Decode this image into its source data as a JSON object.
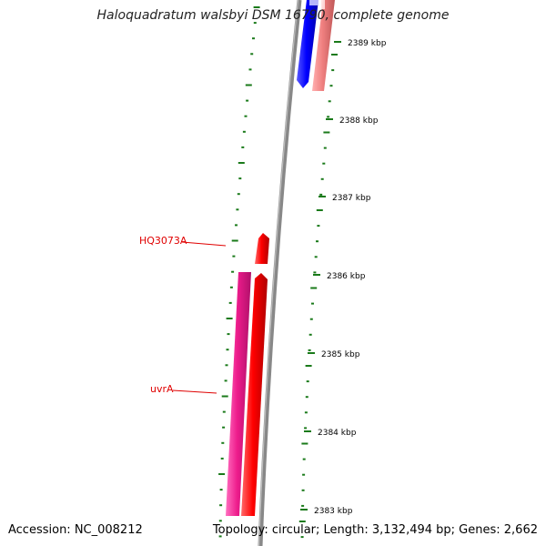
{
  "title": "Haloquadratum walsbyi DSM 16790, complete genome",
  "footer": {
    "accession": "Accession: NC_008212",
    "topology": "Topology: circular; Length: 3,132,494 bp; Genes: 2,662"
  },
  "ticks": {
    "labels": [
      "2389 kbp",
      "2388 kbp",
      "2387 kbp",
      "2386 kbp",
      "2385 kbp",
      "2384 kbp",
      "2383 kbp"
    ]
  },
  "genes": [
    {
      "label": "HQ3073A",
      "color": "#ff0000",
      "strand": "forward"
    },
    {
      "label": "uvrA",
      "color": "#ee1c8c",
      "strand": "reverse"
    },
    {
      "label": "",
      "color": "#ff0000",
      "strand": "forward"
    },
    {
      "label": "",
      "color": "#0000ff",
      "strand": "reverse"
    },
    {
      "label": "",
      "color": "#f08080",
      "strand": "forward"
    }
  ],
  "colors": {
    "backbone": "#888888",
    "tick": "#1a7a1a",
    "label_red": "#e00000"
  }
}
